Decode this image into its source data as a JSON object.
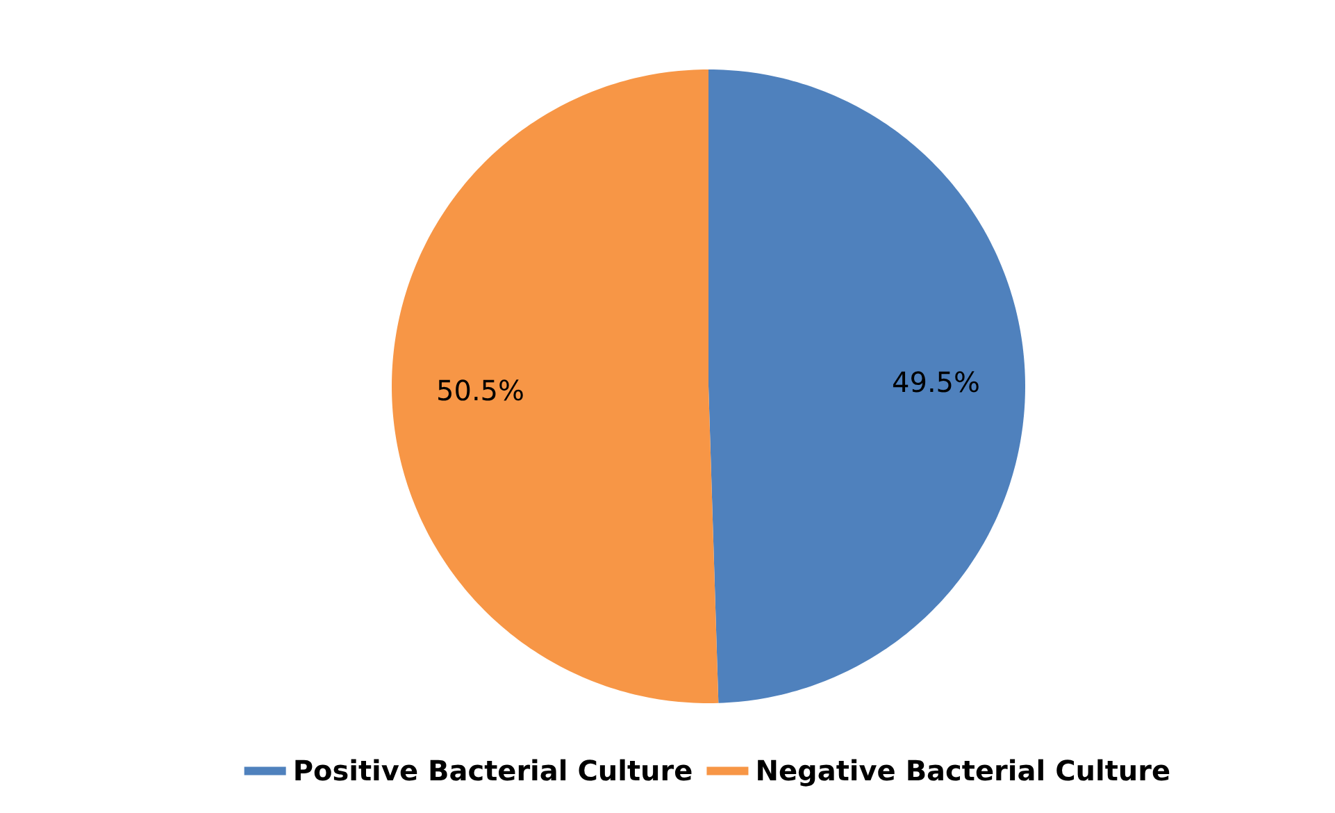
{
  "chart_data": {
    "type": "pie",
    "categories": [
      "Positive Bacterial Culture",
      "Negative Bacterial Culture"
    ],
    "values": [
      49.5,
      50.5
    ],
    "colors": [
      "#4f81bd",
      "#f79646"
    ],
    "value_labels": [
      "49.5%",
      "50.5%"
    ],
    "legend": "bottom"
  }
}
